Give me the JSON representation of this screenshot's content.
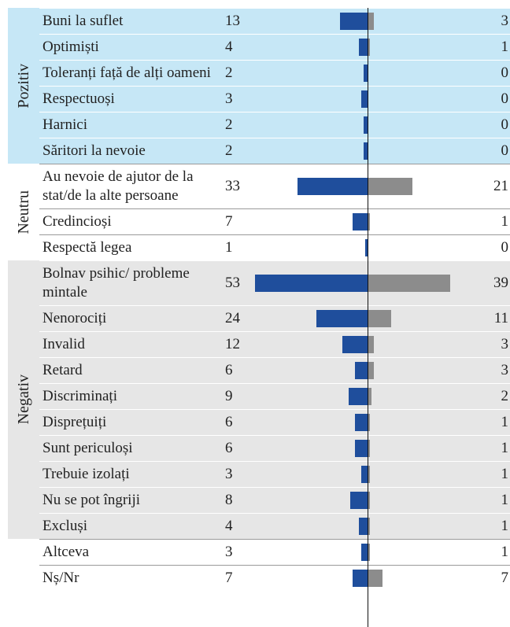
{
  "chart_data": {
    "type": "diverging_bar",
    "colors": [
      "#1f4e9c",
      "#8c8c8c"
    ],
    "groups": [
      {
        "label": "Pozitiv",
        "background": "#c6e7f6",
        "rows": [
          {
            "label": "Buni la suflet",
            "values": [
              13,
              3
            ]
          },
          {
            "label": "Optimiști",
            "values": [
              4,
              1
            ]
          },
          {
            "label": "Toleranți față de alți oameni",
            "values": [
              2,
              0
            ]
          },
          {
            "label": "Respectuoși",
            "values": [
              3,
              0
            ]
          },
          {
            "label": "Harnici",
            "values": [
              2,
              0
            ]
          },
          {
            "label": "Săritori la nevoie",
            "values": [
              2,
              0
            ]
          }
        ]
      },
      {
        "label": "Neutru",
        "background": "#ffffff",
        "rows": [
          {
            "label": "Au nevoie de ajutor de la stat/de la alte persoane",
            "values": [
              33,
              21
            ]
          },
          {
            "label": "Credincioși",
            "values": [
              7,
              1
            ]
          },
          {
            "label": "Respectă legea",
            "values": [
              1,
              0
            ]
          }
        ]
      },
      {
        "label": "Negativ",
        "background": "#e6e6e6",
        "rows": [
          {
            "label": "Bolnav psihic/ probleme mintale",
            "values": [
              53,
              39
            ]
          },
          {
            "label": "Nenorociți",
            "values": [
              24,
              11
            ]
          },
          {
            "label": "Invalid",
            "values": [
              12,
              3
            ]
          },
          {
            "label": "Retard",
            "values": [
              6,
              3
            ]
          },
          {
            "label": "Discriminați",
            "values": [
              9,
              2
            ]
          },
          {
            "label": "Disprețuiți",
            "values": [
              6,
              1
            ]
          },
          {
            "label": "Sunt periculoși",
            "values": [
              6,
              1
            ]
          },
          {
            "label": "Trebuie izolați",
            "values": [
              3,
              1
            ]
          },
          {
            "label": "Nu se pot îngriji",
            "values": [
              8,
              1
            ]
          },
          {
            "label": "Excluși",
            "values": [
              4,
              1
            ]
          }
        ]
      },
      {
        "label": null,
        "background": "#ffffff",
        "rows": [
          {
            "label": "Altceva",
            "values": [
              3,
              1
            ]
          },
          {
            "label": "Nș/Nr",
            "values": [
              7,
              7
            ]
          }
        ]
      }
    ]
  }
}
